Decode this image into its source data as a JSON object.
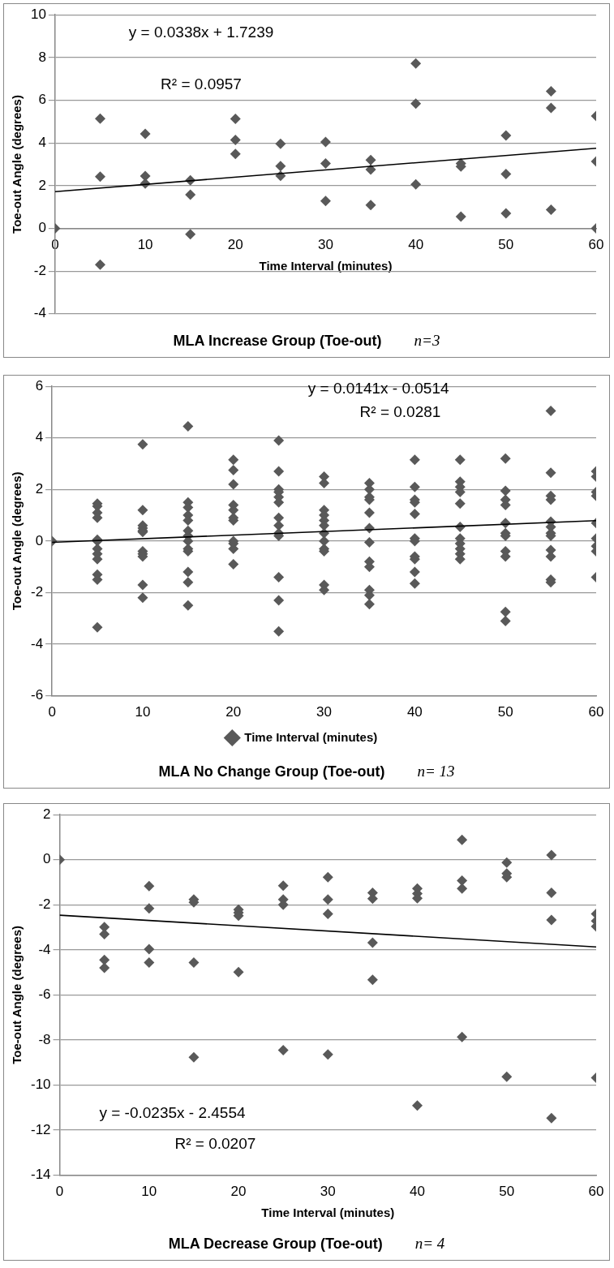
{
  "chart_data": [
    {
      "type": "scatter",
      "title": "MLA Increase Group (Toe-out)",
      "xlabel": "Time Interval (minutes)",
      "ylabel": "Toe-out Angle (degrees)",
      "xlim": [
        0,
        60
      ],
      "ylim": [
        -4,
        10
      ],
      "xticks": [
        0,
        10,
        20,
        30,
        40,
        50,
        60
      ],
      "yticks": [
        -4,
        -2,
        0,
        2,
        4,
        6,
        8,
        10
      ],
      "grid": "y",
      "legend": false,
      "marker": "diamond",
      "annotations": [
        "y = 0.0338x + 1.7239",
        "R² = 0.0957",
        "n=3"
      ],
      "series": [
        {
          "color": "#595959",
          "x": [
            0,
            5,
            5,
            5,
            10,
            10,
            10,
            15,
            15,
            15,
            20,
            20,
            20,
            25,
            25,
            25,
            30,
            30,
            30,
            35,
            35,
            35,
            40,
            40,
            40,
            45,
            45,
            45,
            50,
            50,
            50,
            55,
            55,
            55,
            60,
            60,
            60
          ],
          "values": [
            0,
            5.14,
            2.42,
            -1.7,
            4.42,
            2.45,
            2.1,
            2.25,
            1.58,
            -0.28,
            5.13,
            4.14,
            3.48,
            3.96,
            2.91,
            2.46,
            4.04,
            3.04,
            1.28,
            3.2,
            2.75,
            1.09,
            7.72,
            5.84,
            2.06,
            3.04,
            2.9,
            0.55,
            4.35,
            2.54,
            0.7,
            6.42,
            5.64,
            0.87,
            5.26,
            3.13,
            0
          ]
        },
        {
          "type": "line",
          "marker": "none",
          "color": "#000000",
          "x": [
            0,
            60
          ],
          "values": [
            1.72,
            3.75
          ]
        }
      ]
    },
    {
      "type": "scatter",
      "title": "MLA No Change Group (Toe-out)",
      "ylabel": "Toe-out Angle (degrees)",
      "xlim": [
        0,
        60
      ],
      "ylim": [
        -6,
        6
      ],
      "xticks": [
        0,
        10,
        20,
        30,
        40,
        50,
        60
      ],
      "yticks": [
        -6,
        -4,
        -2,
        0,
        2,
        4,
        6
      ],
      "grid": "y",
      "legend": "bottom",
      "marker": "diamond",
      "annotations": [
        "y = 0.0141x - 0.0514",
        "R² = 0.0281",
        "n= 13"
      ],
      "series": [
        {
          "name": "Time Interval (minutes)",
          "color": "#595959",
          "x": [
            0,
            5,
            5,
            5,
            5,
            5,
            5,
            5,
            5,
            5,
            5,
            5,
            5,
            10,
            10,
            10,
            10,
            10,
            10,
            10,
            10,
            10,
            10,
            10,
            15,
            15,
            15,
            15,
            15,
            15,
            15,
            15,
            15,
            15,
            15,
            15,
            15,
            20,
            20,
            20,
            20,
            20,
            20,
            20,
            20,
            20,
            20,
            20,
            25,
            25,
            25,
            25,
            25,
            25,
            25,
            25,
            25,
            25,
            25,
            25,
            25,
            30,
            30,
            30,
            30,
            30,
            30,
            30,
            30,
            30,
            30,
            30,
            30,
            35,
            35,
            35,
            35,
            35,
            35,
            35,
            35,
            35,
            35,
            35,
            35,
            40,
            40,
            40,
            40,
            40,
            40,
            40,
            40,
            40,
            40,
            40,
            45,
            45,
            45,
            45,
            45,
            45,
            45,
            45,
            45,
            45,
            45,
            50,
            50,
            50,
            50,
            50,
            50,
            50,
            50,
            50,
            50,
            50,
            55,
            55,
            55,
            55,
            55,
            55,
            55,
            55,
            55,
            55,
            55,
            55,
            60,
            60,
            60,
            60,
            60,
            60,
            60,
            60,
            60
          ],
          "values": [
            0,
            1.45,
            1.35,
            1.1,
            0.9,
            0.05,
            0,
            -0.3,
            -0.5,
            -0.7,
            -1.3,
            -1.5,
            -3.35,
            3.75,
            1.2,
            0.6,
            0.5,
            0.4,
            0.35,
            -0.4,
            -0.5,
            -0.6,
            -1.7,
            -2.2,
            4.45,
            1.5,
            1.3,
            1,
            0.8,
            0.4,
            0.2,
            0,
            -0.3,
            -0.4,
            -1.2,
            -1.6,
            -2.5,
            3.15,
            2.75,
            2.2,
            1.4,
            1.2,
            0.9,
            0.8,
            0,
            -0.1,
            -0.3,
            -0.9,
            3.9,
            2.7,
            2,
            1.9,
            1.7,
            1.5,
            0.9,
            0.6,
            0.3,
            0.2,
            -1.4,
            -2.3,
            -3.5,
            2.5,
            2.25,
            1.2,
            1,
            0.8,
            0.6,
            0.3,
            0,
            -0.3,
            -0.4,
            -1.7,
            -1.9,
            2.25,
            2,
            1.7,
            1.6,
            1.1,
            0.5,
            -0.05,
            -0.8,
            -1,
            -1.9,
            -2.1,
            -2.45,
            3.15,
            2.1,
            1.6,
            1.5,
            1.05,
            0.1,
            0,
            -0.6,
            -0.7,
            -1.2,
            -1.65,
            3.15,
            2.3,
            2.1,
            1.9,
            1.45,
            0.55,
            0.1,
            -0.1,
            -0.3,
            -0.5,
            -0.7,
            3.2,
            1.95,
            1.6,
            1.4,
            0.7,
            0.3,
            0.2,
            -0.4,
            -0.6,
            -2.75,
            -3.1,
            5.05,
            2.65,
            1.75,
            1.6,
            0.75,
            0.55,
            0.3,
            0.2,
            -0.35,
            -0.6,
            -1.5,
            -1.6,
            2.7,
            2.5,
            1.9,
            1.75,
            0.7,
            0.1,
            -0.2,
            -0.4,
            -1.4
          ]
        },
        {
          "type": "line",
          "marker": "none",
          "color": "#000000",
          "x": [
            0,
            60
          ],
          "values": [
            -0.05,
            0.79
          ]
        }
      ]
    },
    {
      "type": "scatter",
      "title": "MLA Decrease Group (Toe-out)",
      "xlabel": "Time Interval (minutes)",
      "ylabel": "Toe-out Angle (degrees)",
      "xlim": [
        0,
        60
      ],
      "ylim": [
        -14,
        2
      ],
      "xticks": [
        0,
        10,
        20,
        30,
        40,
        50,
        60
      ],
      "yticks": [
        -14,
        -12,
        -10,
        -8,
        -6,
        -4,
        -2,
        0,
        2
      ],
      "grid": "y",
      "legend": false,
      "marker": "diamond",
      "annotations": [
        "y = -0.0235x - 2.4554",
        "R² = 0.0207",
        "n= 4"
      ],
      "series": [
        {
          "color": "#595959",
          "x": [
            0,
            5,
            5,
            5,
            5,
            10,
            10,
            10,
            10,
            15,
            15,
            15,
            15,
            20,
            20,
            20,
            20,
            25,
            25,
            25,
            25,
            30,
            30,
            30,
            30,
            35,
            35,
            35,
            35,
            40,
            40,
            40,
            40,
            45,
            45,
            45,
            45,
            50,
            50,
            50,
            50,
            55,
            55,
            55,
            55,
            60,
            60,
            60,
            60
          ],
          "values": [
            0,
            -2.99,
            -3.3,
            -4.45,
            -4.8,
            -1.17,
            -2.16,
            -3.97,
            -4.56,
            -1.76,
            -1.89,
            -4.56,
            -8.77,
            -2.21,
            -2.35,
            -2.48,
            -4.99,
            -1.15,
            -1.76,
            -2,
            -8.45,
            -0.77,
            -1.76,
            -2.4,
            -8.64,
            -1.47,
            -1.73,
            -3.68,
            -5.33,
            -1.28,
            -1.5,
            -1.71,
            -10.91,
            0.88,
            -0.93,
            -1.28,
            -7.87,
            -0.13,
            -0.61,
            -0.77,
            -9.63,
            0.21,
            -1.47,
            -2.67,
            -11.47,
            -2.4,
            -2.72,
            -2.96,
            -9.68
          ]
        },
        {
          "type": "line",
          "marker": "none",
          "color": "#000000",
          "x": [
            0,
            60
          ],
          "values": [
            -2.46,
            -3.87
          ]
        }
      ]
    }
  ]
}
